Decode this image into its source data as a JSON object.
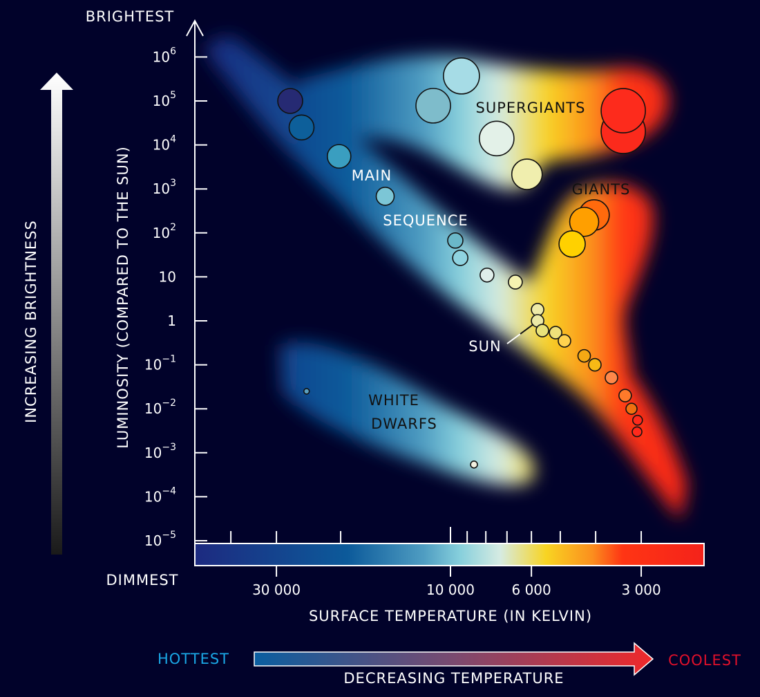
{
  "labels": {
    "brightest": "BRIGHTEST",
    "dimmest": "DIMMEST",
    "increasing_brightness": "INCREASING BRIGHTNESS",
    "y_axis": "LUMINOSITY (COMPARED TO THE SUN)",
    "x_axis": "SURFACE TEMPERATURE (IN KELVIN)",
    "hottest": "HOTTEST",
    "coolest": "COOLEST",
    "decreasing_temperature": "DECREASING TEMPERATURE",
    "supergiants": "SUPERGIANTS",
    "giants": "GIANTS",
    "main": "MAIN",
    "sequence": "SEQUENCE",
    "sun": "SUN",
    "white": "WHITE",
    "dwarfs": "DWARFS"
  },
  "colors": {
    "background": "#01022a",
    "hottest": "#1aa8e6",
    "coolest": "#e0102a"
  },
  "chart_data": {
    "type": "scatter",
    "xlabel": "SURFACE TEMPERATURE (IN KELVIN)",
    "ylabel": "LUMINOSITY (COMPARED TO THE SUN)",
    "x_scale": "log",
    "x_reversed": true,
    "y_scale": "log",
    "y_ticks": [
      {
        "value": 1000000,
        "base": "10",
        "exp": "6"
      },
      {
        "value": 100000,
        "base": "10",
        "exp": "5"
      },
      {
        "value": 10000,
        "base": "10",
        "exp": "4"
      },
      {
        "value": 1000,
        "base": "10",
        "exp": "3"
      },
      {
        "value": 100,
        "base": "10",
        "exp": "2"
      },
      {
        "value": 10,
        "base": "10",
        "exp": ""
      },
      {
        "value": 1,
        "base": "1",
        "exp": ""
      },
      {
        "value": 0.1,
        "base": "10",
        "exp": "−1"
      },
      {
        "value": 0.01,
        "base": "10",
        "exp": "−2"
      },
      {
        "value": 0.001,
        "base": "10",
        "exp": "−3"
      },
      {
        "value": 0.0001,
        "base": "10",
        "exp": "−4"
      },
      {
        "value": 1e-05,
        "base": "10",
        "exp": "−5"
      }
    ],
    "x_ticks_labeled": [
      {
        "value": 30000,
        "label": "30 000"
      },
      {
        "value": 10000,
        "label": "10 000"
      },
      {
        "value": 6000,
        "label": "6 000"
      },
      {
        "value": 3000,
        "label": "3 000"
      }
    ],
    "x_ticks_minor": [
      40000,
      20000,
      9000,
      8000,
      7000,
      5000,
      4000
    ],
    "stars": [
      {
        "group": "main sequence",
        "temperature": 27500,
        "luminosity": 100000,
        "color": "#262a73",
        "size": 18
      },
      {
        "group": "main sequence",
        "temperature": 25600,
        "luminosity": 25000,
        "color": "#0d5f9a",
        "size": 18
      },
      {
        "group": "main sequence",
        "temperature": 20200,
        "luminosity": 5500,
        "color": "#3a9ec0",
        "size": 17
      },
      {
        "group": "main sequence",
        "temperature": 15100,
        "luminosity": 680,
        "color": "#7cc6d6",
        "size": 13
      },
      {
        "group": "supergiants",
        "temperature": 9330,
        "luminosity": 370000,
        "color": "#a6dce6",
        "size": 26
      },
      {
        "group": "supergiants",
        "temperature": 11150,
        "luminosity": 78000,
        "color": "#7ebccb",
        "size": 25
      },
      {
        "group": "supergiants",
        "temperature": 7470,
        "luminosity": 14000,
        "color": "#e3f1e8",
        "size": 25
      },
      {
        "group": "supergiants",
        "temperature": 6170,
        "luminosity": 2150,
        "color": "#f0eeae",
        "size": 22
      },
      {
        "group": "supergiants",
        "temperature": 3360,
        "luminosity": 20400,
        "color": "#fb2a1c",
        "size": 32
      },
      {
        "group": "supergiants",
        "temperature": 3360,
        "luminosity": 60000,
        "color": "#fd2b1c",
        "size": 32
      },
      {
        "group": "giants",
        "temperature": 4040,
        "luminosity": 255,
        "color": "#ff6a0d",
        "size": 22
      },
      {
        "group": "giants",
        "temperature": 4300,
        "luminosity": 178,
        "color": "#ff9f00",
        "size": 21
      },
      {
        "group": "giants",
        "temperature": 4640,
        "luminosity": 56,
        "color": "#ffd100",
        "size": 19
      },
      {
        "group": "main sequence",
        "temperature": 9700,
        "luminosity": 67,
        "color": "#6bb8c9",
        "size": 11
      },
      {
        "group": "main sequence",
        "temperature": 9400,
        "luminosity": 27,
        "color": "#8fd3e0",
        "size": 11
      },
      {
        "group": "main sequence",
        "temperature": 7940,
        "luminosity": 11,
        "color": "#dfeeea",
        "size": 10
      },
      {
        "group": "main sequence",
        "temperature": 6640,
        "luminosity": 7.6,
        "color": "#f5f2b0",
        "size": 10
      },
      {
        "group": "main sequence",
        "temperature": 5770,
        "luminosity": 1.8,
        "color": "#eeeaa8",
        "size": 9
      },
      {
        "group": "sun",
        "temperature": 5770,
        "luminosity": 1,
        "color": "#ece9a6",
        "size": 9
      },
      {
        "group": "main sequence",
        "temperature": 5600,
        "luminosity": 0.6,
        "color": "#e8e27a",
        "size": 9
      },
      {
        "group": "main sequence",
        "temperature": 5150,
        "luminosity": 0.54,
        "color": "#eee07a",
        "size": 9
      },
      {
        "group": "main sequence",
        "temperature": 4870,
        "luminosity": 0.35,
        "color": "#ffd24f",
        "size": 9
      },
      {
        "group": "main sequence",
        "temperature": 4300,
        "luminosity": 0.16,
        "color": "#f4a914",
        "size": 9
      },
      {
        "group": "main sequence",
        "temperature": 4020,
        "luminosity": 0.1,
        "color": "#f7ba16",
        "size": 9
      },
      {
        "group": "main sequence",
        "temperature": 3620,
        "luminosity": 0.051,
        "color": "#ff884a",
        "size": 9
      },
      {
        "group": "main sequence",
        "temperature": 3320,
        "luminosity": 0.02,
        "color": "#ff7a2a",
        "size": 9
      },
      {
        "group": "main sequence",
        "temperature": 3190,
        "luminosity": 0.01,
        "color": "#f07010",
        "size": 8
      },
      {
        "group": "main sequence",
        "temperature": 3070,
        "luminosity": 0.0055,
        "color": "#ff2a1c",
        "size": 7
      },
      {
        "group": "main sequence",
        "temperature": 3080,
        "luminosity": 0.003,
        "color": "#ff2a1c",
        "size": 7
      },
      {
        "group": "white dwarfs",
        "temperature": 24800,
        "luminosity": 0.025,
        "color": "#5aa0c0",
        "size": 4
      },
      {
        "group": "white dwarfs",
        "temperature": 8620,
        "luminosity": 0.00054,
        "color": "#f2f0e0",
        "size": 5
      }
    ]
  }
}
